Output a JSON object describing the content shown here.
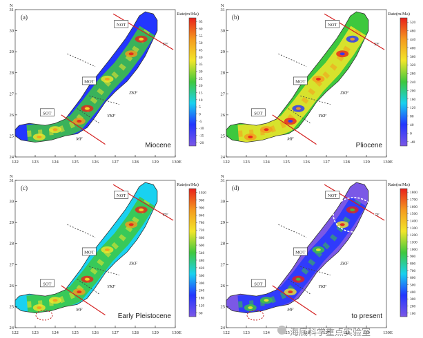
{
  "chart_data": [
    {
      "type": "heatmap",
      "panel_label": "(a)",
      "period": "Miocene",
      "xlabel": "E",
      "ylabel": "N",
      "x_ticks": [
        "122",
        "123",
        "124",
        "125",
        "126",
        "127",
        "128",
        "129",
        "130"
      ],
      "y_ticks": [
        "24",
        "25",
        "26",
        "27",
        "28",
        "29",
        "30",
        "31"
      ],
      "xlim": [
        122,
        130
      ],
      "ylim": [
        24,
        31
      ],
      "colorbar_title": "Rate(m/Ma)",
      "colorbar_ticks": [
        "65",
        "60",
        "55",
        "50",
        "45",
        "40",
        "35",
        "30",
        "25",
        "20",
        "15",
        "10",
        "5",
        "0",
        "-5",
        "-10",
        "-15",
        "-20"
      ],
      "region_labels": [
        "NOT",
        "MOT",
        "SOT"
      ],
      "fault_labels": [
        "TF",
        "ZKF",
        "YKF",
        "MF"
      ]
    },
    {
      "type": "heatmap",
      "panel_label": "(b)",
      "period": "Pliocene",
      "xlabel": "E",
      "ylabel": "N",
      "x_ticks": [
        "122",
        "123",
        "124",
        "125",
        "126",
        "127",
        "128",
        "129",
        "130"
      ],
      "y_ticks": [
        "24",
        "25",
        "26",
        "27",
        "28",
        "29",
        "30",
        "31"
      ],
      "xlim": [
        122,
        130
      ],
      "ylim": [
        24,
        31
      ],
      "colorbar_title": "Rate(m/Ma)",
      "colorbar_ticks": [
        "520",
        "480",
        "440",
        "400",
        "360",
        "320",
        "280",
        "240",
        "200",
        "160",
        "120",
        "80",
        "40",
        "0",
        "-40"
      ],
      "region_labels": [
        "NOT",
        "MOT",
        "SOT"
      ],
      "fault_labels": [
        "TF",
        "ZKF",
        "YKF",
        "MF"
      ]
    },
    {
      "type": "heatmap",
      "panel_label": "(c)",
      "period": "Early Pleistocene",
      "xlabel": "E",
      "ylabel": "N",
      "x_ticks": [
        "122",
        "123",
        "124",
        "125",
        "126",
        "127",
        "128",
        "129",
        "130"
      ],
      "y_ticks": [
        "24",
        "25",
        "26",
        "27",
        "28",
        "29",
        "30",
        "31"
      ],
      "xlim": [
        122,
        130
      ],
      "ylim": [
        24,
        31
      ],
      "colorbar_title": "Rate(m/Ma)",
      "colorbar_ticks": [
        "1020",
        "960",
        "900",
        "840",
        "780",
        "720",
        "660",
        "600",
        "540",
        "480",
        "420",
        "360",
        "300",
        "240",
        "180",
        "120",
        "60"
      ],
      "region_labels": [
        "NOT",
        "MOT",
        "SOT"
      ],
      "fault_labels": [
        "TF",
        "ZKF",
        "YKF",
        "MF"
      ]
    },
    {
      "type": "heatmap",
      "panel_label": "(d)",
      "period": "to present",
      "xlabel": "E",
      "ylabel": "N",
      "x_ticks": [
        "122",
        "123",
        "124",
        "125",
        "126",
        "127",
        "128",
        "129",
        "130"
      ],
      "y_ticks": [
        "24",
        "25",
        "26",
        "27",
        "28",
        "29",
        "30",
        "31"
      ],
      "xlim": [
        122,
        130
      ],
      "ylim": [
        24,
        31
      ],
      "colorbar_title": "Rate(m/Ma)",
      "colorbar_ticks": [
        "1800",
        "1700",
        "1600",
        "1500",
        "1400",
        "1300",
        "1200",
        "1100",
        "1000",
        "900",
        "800",
        "700",
        "600",
        "500",
        "400",
        "300",
        "200",
        "100"
      ],
      "region_labels": [
        "NOT",
        "MOT",
        "SOT"
      ],
      "fault_labels": [
        "TF",
        "ZKF",
        "YKF",
        "MF"
      ]
    }
  ],
  "watermark": "海底科学重点实验室",
  "colors": {
    "low": "#7b58e6",
    "blue": "#2336ff",
    "cyan": "#19d1f0",
    "green": "#3ec83e",
    "yellow": "#f2e62a",
    "orange": "#f59a1e",
    "red": "#e8201c",
    "fault": "#d42020"
  }
}
